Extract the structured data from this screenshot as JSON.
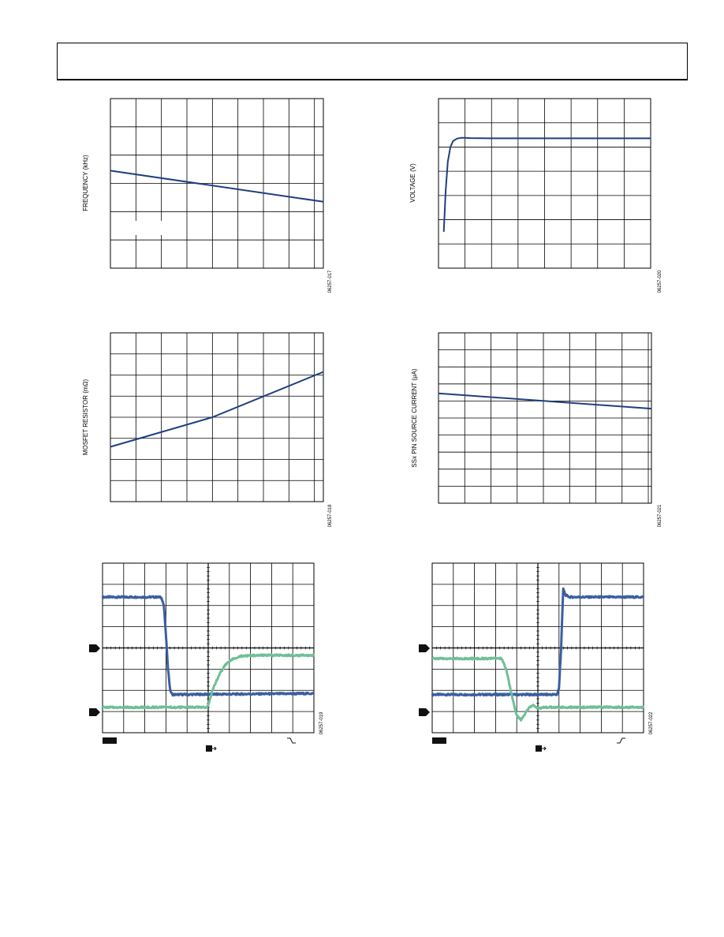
{
  "chart_data": [
    {
      "id": "fig17",
      "type": "line",
      "title": "",
      "xlabel": "",
      "ylabel": "FREQUENCY (kHz)",
      "figure_id": "06257-017",
      "grid": true,
      "xlim": [
        0,
        8.35
      ],
      "ylim": [
        0,
        6
      ],
      "series": [
        {
          "x": [
            0,
            8.35
          ],
          "y": [
            3.45,
            2.35
          ],
          "color": "#1f3f7f"
        }
      ]
    },
    {
      "id": "fig20",
      "type": "line",
      "title": "",
      "xlabel": "",
      "ylabel": "VOLTAGE (V)",
      "figure_id": "06257-020",
      "grid": true,
      "xlim": [
        0,
        8
      ],
      "ylim": [
        0,
        7
      ],
      "series": [
        {
          "x": [
            0.2,
            0.27,
            0.35,
            0.45,
            0.55,
            0.7,
            0.85,
            1.0,
            1.2,
            2,
            4,
            6,
            8
          ],
          "y": [
            1.5,
            3.2,
            4.4,
            5.0,
            5.25,
            5.35,
            5.38,
            5.38,
            5.37,
            5.36,
            5.36,
            5.36,
            5.36
          ],
          "color": "#1f3f7f"
        }
      ]
    },
    {
      "id": "fig18",
      "type": "line",
      "title": "",
      "xlabel": "",
      "ylabel": "MOSFET RESISTOR (mΩ)",
      "figure_id": "06257-018",
      "grid": true,
      "xlim": [
        0,
        8.35
      ],
      "ylim": [
        0,
        8
      ],
      "series": [
        {
          "x": [
            0,
            4,
            8.35
          ],
          "y": [
            2.6,
            4.0,
            6.15
          ],
          "color": "#1f3f7f"
        }
      ]
    },
    {
      "id": "fig21",
      "type": "line",
      "title": "",
      "xlabel": "",
      "ylabel": "SSx PIN SOURCE CURRENT (μA)",
      "figure_id": "06257-021",
      "grid": true,
      "xlim": [
        0,
        8.12
      ],
      "ylim": [
        0,
        10
      ],
      "series": [
        {
          "x": [
            0,
            8.12
          ],
          "y": [
            6.45,
            5.55
          ],
          "color": "#1f3f7f"
        }
      ]
    },
    {
      "id": "fig19",
      "type": "line",
      "title": "",
      "xlabel": "",
      "ylabel": "",
      "figure_id": "06257-019",
      "grid": true,
      "xlim": [
        0,
        10
      ],
      "ylim": [
        0,
        8
      ],
      "series": [
        {
          "x": [
            0,
            2.7,
            2.8,
            2.9,
            3.0,
            3.1,
            3.2,
            3.3,
            10
          ],
          "y": [
            6.4,
            6.4,
            6.35,
            6.0,
            4.6,
            3.0,
            2.0,
            1.8,
            1.85
          ],
          "color": "#3a5fa0"
        },
        {
          "x": [
            0,
            4.9,
            5.0,
            5.2,
            5.5,
            5.8,
            6.1,
            6.5,
            7.0,
            10
          ],
          "y": [
            1.2,
            1.2,
            1.3,
            2.0,
            2.7,
            3.2,
            3.45,
            3.6,
            3.65,
            3.65
          ],
          "color": "#6fbf97"
        }
      ]
    },
    {
      "id": "fig22",
      "type": "line",
      "title": "",
      "xlabel": "",
      "ylabel": "",
      "figure_id": "06257-022",
      "grid": true,
      "xlim": [
        0,
        10
      ],
      "ylim": [
        0,
        8
      ],
      "series": [
        {
          "x": [
            0,
            5.9,
            6.0,
            6.1,
            6.2,
            6.3,
            6.5,
            10
          ],
          "y": [
            1.8,
            1.8,
            2.1,
            4.0,
            6.8,
            6.5,
            6.4,
            6.4
          ],
          "color": "#3a5fa0"
        },
        {
          "x": [
            0,
            3.3,
            3.5,
            3.8,
            4.0,
            4.2,
            4.4,
            4.6,
            4.8,
            5.0,
            5.3,
            6.0,
            10
          ],
          "y": [
            3.5,
            3.5,
            3.0,
            1.6,
            0.8,
            0.6,
            0.9,
            1.2,
            1.3,
            1.15,
            1.2,
            1.2,
            1.2
          ],
          "color": "#6fbf97"
        }
      ]
    }
  ]
}
